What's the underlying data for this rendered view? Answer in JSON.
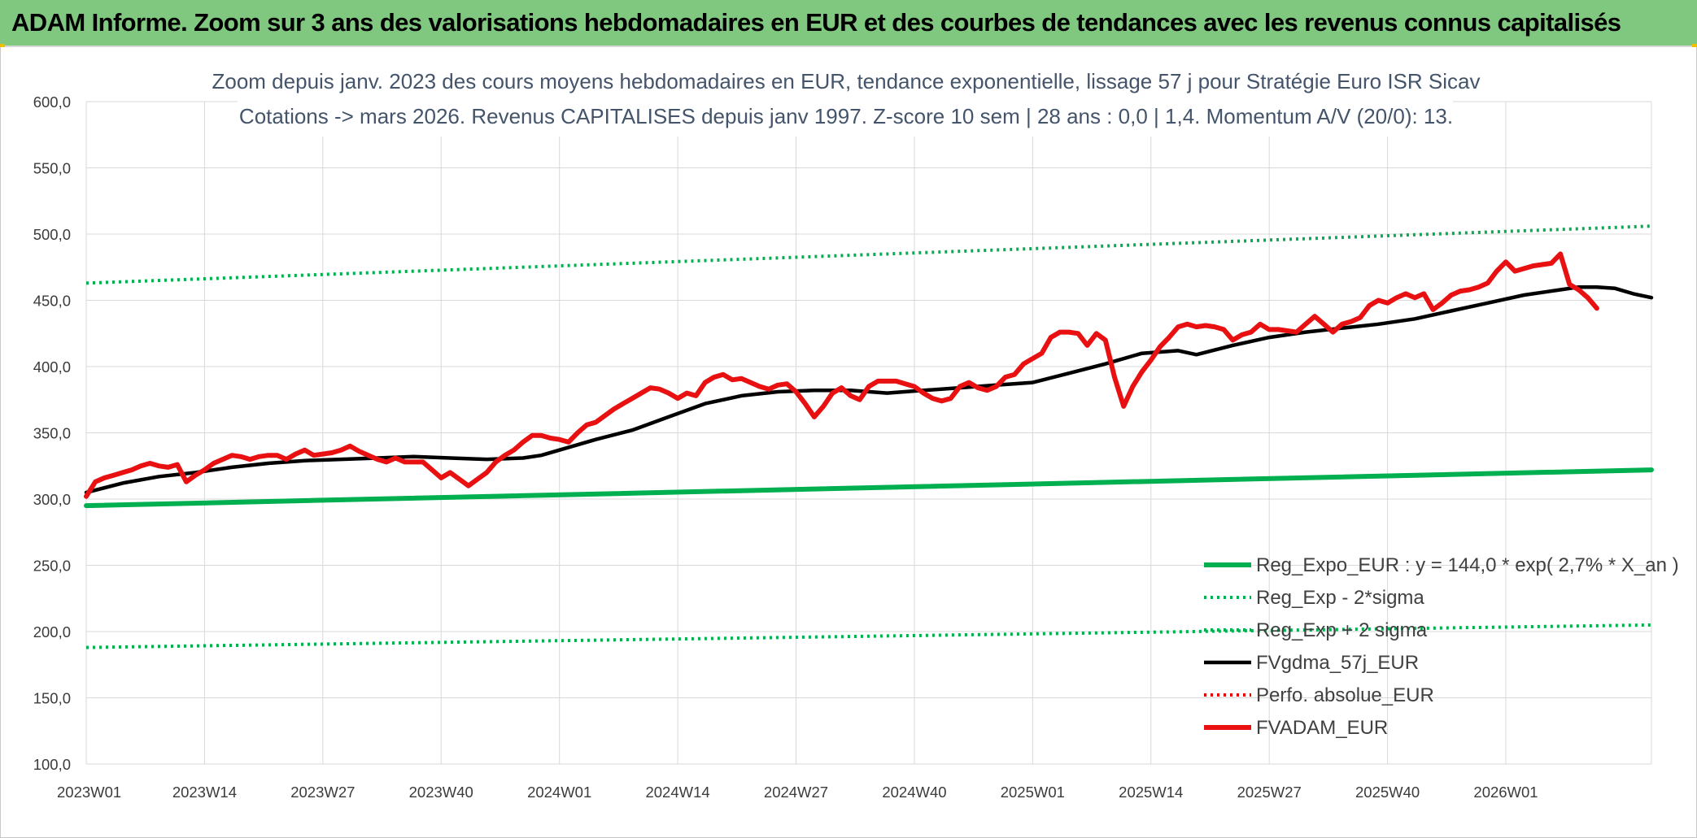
{
  "banner": {
    "title": "ADAM Informe. Zoom sur 3 ans des valorisations hebdomadaires en EUR et des courbes de tendances avec les revenus connus capitalisés"
  },
  "chart_data": {
    "type": "line",
    "title": [
      "Zoom depuis janv. 2023 des cours moyens hebdomadaires en EUR, tendance exponentielle, lissage 57 j pour Stratégie Euro ISR Sicav",
      "Cotations -> mars 2026. Revenus CAPITALISES depuis janv 1997. Z-score 10 sem | 28 ans : 0,0 | 1,4. Momentum A/V (20/0): 13."
    ],
    "xlabel": "",
    "ylabel": "",
    "ylim": [
      100,
      600
    ],
    "yticks": [
      "100,0",
      "150,0",
      "200,0",
      "250,0",
      "300,0",
      "350,0",
      "400,0",
      "450,0",
      "500,0",
      "550,0",
      "600,0"
    ],
    "xticks": [
      "2023W01",
      "2023W14",
      "2023W27",
      "2023W40",
      "2024W01",
      "2024W14",
      "2024W27",
      "2024W40",
      "2025W01",
      "2025W14",
      "2025W27",
      "2025W40",
      "2026W01"
    ],
    "x_range_weeks": [
      0,
      172
    ],
    "grid": true,
    "legend_position": "bottom-right",
    "colors": {
      "regression": "#00b050",
      "regression_sigma": "#00b050",
      "moving_average": "#000000",
      "absolute_perf": "#e00000",
      "price": "#e81010"
    },
    "series": [
      {
        "name": "Reg_Expo_EUR : y = 144,0 * exp( 2,7% *  X_an )",
        "style": "thick-solid",
        "color": "#00b050",
        "points": [
          [
            0,
            295.0
          ],
          [
            172,
            322.0
          ]
        ]
      },
      {
        "name": "Reg_Exp - 2*sigma",
        "style": "dotted",
        "color": "#00b050",
        "points": [
          [
            0,
            188.0
          ],
          [
            172,
            205.0
          ]
        ]
      },
      {
        "name": "Reg_Exp + 2 sigma",
        "style": "dotted",
        "color": "#00b050",
        "points": [
          [
            0,
            463.0
          ],
          [
            172,
            506.0
          ]
        ]
      },
      {
        "name": "FVgdma_57j_EUR",
        "style": "solid",
        "color": "#000000",
        "points": [
          [
            0,
            305
          ],
          [
            4,
            312
          ],
          [
            8,
            317
          ],
          [
            12,
            320
          ],
          [
            16,
            324
          ],
          [
            20,
            327
          ],
          [
            24,
            329
          ],
          [
            28,
            330
          ],
          [
            32,
            331
          ],
          [
            36,
            332
          ],
          [
            40,
            331
          ],
          [
            44,
            330
          ],
          [
            48,
            331
          ],
          [
            50,
            333
          ],
          [
            52,
            337
          ],
          [
            56,
            345
          ],
          [
            60,
            352
          ],
          [
            64,
            362
          ],
          [
            68,
            372
          ],
          [
            72,
            378
          ],
          [
            76,
            381
          ],
          [
            80,
            382
          ],
          [
            84,
            382
          ],
          [
            88,
            380
          ],
          [
            92,
            382
          ],
          [
            96,
            384
          ],
          [
            100,
            386
          ],
          [
            104,
            388
          ],
          [
            108,
            395
          ],
          [
            112,
            402
          ],
          [
            116,
            410
          ],
          [
            120,
            412
          ],
          [
            122,
            409
          ],
          [
            126,
            416
          ],
          [
            130,
            422
          ],
          [
            134,
            426
          ],
          [
            138,
            429
          ],
          [
            142,
            432
          ],
          [
            146,
            436
          ],
          [
            150,
            442
          ],
          [
            154,
            448
          ],
          [
            158,
            454
          ],
          [
            162,
            458
          ],
          [
            164,
            460
          ],
          [
            166,
            460
          ],
          [
            168,
            459
          ],
          [
            170,
            455
          ],
          [
            172,
            452
          ]
        ]
      },
      {
        "name": "Perfo. absolue_EUR",
        "style": "dotted",
        "color": "#e00000",
        "points": []
      },
      {
        "name": "FVADAM_EUR",
        "style": "thick-solid",
        "color": "#e81010",
        "points": [
          [
            0,
            302
          ],
          [
            1,
            313
          ],
          [
            2,
            316
          ],
          [
            3,
            318
          ],
          [
            4,
            320
          ],
          [
            5,
            322
          ],
          [
            6,
            325
          ],
          [
            7,
            327
          ],
          [
            8,
            325
          ],
          [
            9,
            324
          ],
          [
            10,
            326
          ],
          [
            11,
            313
          ],
          [
            12,
            318
          ],
          [
            13,
            322
          ],
          [
            14,
            327
          ],
          [
            15,
            330
          ],
          [
            16,
            333
          ],
          [
            17,
            332
          ],
          [
            18,
            330
          ],
          [
            19,
            332
          ],
          [
            20,
            333
          ],
          [
            21,
            333
          ],
          [
            22,
            330
          ],
          [
            23,
            334
          ],
          [
            24,
            337
          ],
          [
            25,
            333
          ],
          [
            26,
            334
          ],
          [
            27,
            335
          ],
          [
            28,
            337
          ],
          [
            29,
            340
          ],
          [
            30,
            336
          ],
          [
            31,
            333
          ],
          [
            32,
            330
          ],
          [
            33,
            328
          ],
          [
            34,
            331
          ],
          [
            35,
            328
          ],
          [
            36,
            328
          ],
          [
            37,
            328
          ],
          [
            38,
            322
          ],
          [
            39,
            316
          ],
          [
            40,
            320
          ],
          [
            41,
            315
          ],
          [
            42,
            310
          ],
          [
            43,
            315
          ],
          [
            44,
            320
          ],
          [
            45,
            328
          ],
          [
            46,
            333
          ],
          [
            47,
            337
          ],
          [
            48,
            343
          ],
          [
            49,
            348
          ],
          [
            50,
            348
          ],
          [
            51,
            346
          ],
          [
            52,
            345
          ],
          [
            53,
            343
          ],
          [
            54,
            350
          ],
          [
            55,
            356
          ],
          [
            56,
            358
          ],
          [
            57,
            363
          ],
          [
            58,
            368
          ],
          [
            59,
            372
          ],
          [
            60,
            376
          ],
          [
            61,
            380
          ],
          [
            62,
            384
          ],
          [
            63,
            383
          ],
          [
            64,
            380
          ],
          [
            65,
            376
          ],
          [
            66,
            380
          ],
          [
            67,
            378
          ],
          [
            68,
            388
          ],
          [
            69,
            392
          ],
          [
            70,
            394
          ],
          [
            71,
            390
          ],
          [
            72,
            391
          ],
          [
            73,
            388
          ],
          [
            74,
            385
          ],
          [
            75,
            383
          ],
          [
            76,
            386
          ],
          [
            77,
            387
          ],
          [
            78,
            381
          ],
          [
            79,
            372
          ],
          [
            80,
            362
          ],
          [
            81,
            370
          ],
          [
            82,
            380
          ],
          [
            83,
            384
          ],
          [
            84,
            378
          ],
          [
            85,
            375
          ],
          [
            86,
            385
          ],
          [
            87,
            389
          ],
          [
            88,
            389
          ],
          [
            89,
            389
          ],
          [
            90,
            387
          ],
          [
            91,
            385
          ],
          [
            92,
            380
          ],
          [
            93,
            376
          ],
          [
            94,
            374
          ],
          [
            95,
            376
          ],
          [
            96,
            385
          ],
          [
            97,
            388
          ],
          [
            98,
            384
          ],
          [
            99,
            382
          ],
          [
            100,
            385
          ],
          [
            101,
            392
          ],
          [
            102,
            394
          ],
          [
            103,
            402
          ],
          [
            104,
            406
          ],
          [
            105,
            410
          ],
          [
            106,
            422
          ],
          [
            107,
            426
          ],
          [
            108,
            426
          ],
          [
            109,
            425
          ],
          [
            110,
            416
          ],
          [
            111,
            425
          ],
          [
            112,
            420
          ],
          [
            113,
            392
          ],
          [
            114,
            370
          ],
          [
            115,
            385
          ],
          [
            116,
            396
          ],
          [
            117,
            405
          ],
          [
            118,
            415
          ],
          [
            119,
            422
          ],
          [
            120,
            430
          ],
          [
            121,
            432
          ],
          [
            122,
            430
          ],
          [
            123,
            431
          ],
          [
            124,
            430
          ],
          [
            125,
            428
          ],
          [
            126,
            420
          ],
          [
            127,
            424
          ],
          [
            128,
            426
          ],
          [
            129,
            432
          ],
          [
            130,
            428
          ],
          [
            131,
            428
          ],
          [
            132,
            427
          ],
          [
            133,
            426
          ],
          [
            134,
            432
          ],
          [
            135,
            438
          ],
          [
            136,
            432
          ],
          [
            137,
            426
          ],
          [
            138,
            432
          ],
          [
            139,
            434
          ],
          [
            140,
            437
          ],
          [
            141,
            446
          ],
          [
            142,
            450
          ],
          [
            143,
            448
          ],
          [
            144,
            452
          ],
          [
            145,
            455
          ],
          [
            146,
            452
          ],
          [
            147,
            455
          ],
          [
            148,
            443
          ],
          [
            149,
            448
          ],
          [
            150,
            454
          ],
          [
            151,
            457
          ],
          [
            152,
            458
          ],
          [
            153,
            460
          ],
          [
            154,
            463
          ],
          [
            155,
            472
          ],
          [
            156,
            479
          ],
          [
            157,
            472
          ],
          [
            158,
            474
          ],
          [
            159,
            476
          ],
          [
            160,
            477
          ],
          [
            161,
            478
          ],
          [
            162,
            485
          ],
          [
            163,
            462
          ],
          [
            164,
            458
          ],
          [
            165,
            452
          ],
          [
            166,
            444
          ]
        ]
      }
    ]
  }
}
